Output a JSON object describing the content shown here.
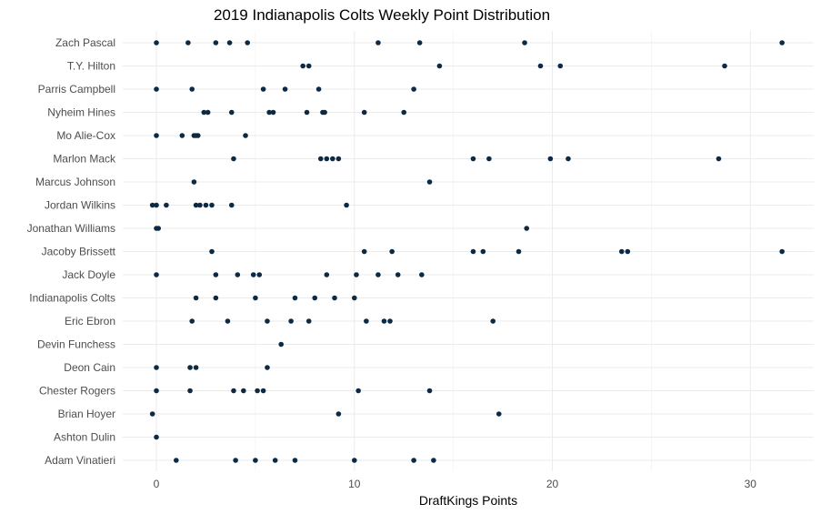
{
  "chart_data": {
    "type": "scatter",
    "title": "2019 Indianapolis Colts Weekly Point Distribution",
    "xlabel": "DraftKings Points",
    "ylabel": "",
    "xlim": [
      -1.7,
      33.2
    ],
    "xticks": [
      0,
      10,
      20,
      30
    ],
    "grid": true,
    "point_color": "#0d2a45",
    "grid_color": "#ebebeb",
    "categories": [
      "Zach Pascal",
      "T.Y. Hilton",
      "Parris Campbell",
      "Nyheim Hines",
      "Mo Alie-Cox",
      "Marlon Mack",
      "Marcus Johnson",
      "Jordan Wilkins",
      "Jonathan Williams",
      "Jacoby Brissett",
      "Jack Doyle",
      "Indianapolis Colts",
      "Eric Ebron",
      "Devin Funchess",
      "Deon Cain",
      "Chester Rogers",
      "Brian Hoyer",
      "Ashton Dulin",
      "Adam Vinatieri"
    ],
    "series": [
      {
        "category": "Zach Pascal",
        "values": [
          0,
          1.6,
          3.0,
          3.7,
          4.6,
          11.2,
          13.3,
          18.6,
          31.6
        ]
      },
      {
        "category": "T.Y. Hilton",
        "values": [
          7.4,
          7.7,
          14.3,
          19.4,
          20.4,
          28.7
        ]
      },
      {
        "category": "Parris Campbell",
        "values": [
          0,
          1.8,
          5.4,
          6.5,
          8.2,
          13.0
        ]
      },
      {
        "category": "Nyheim Hines",
        "values": [
          2.4,
          2.6,
          3.8,
          5.7,
          5.9,
          7.6,
          8.4,
          8.5,
          10.5,
          12.5
        ]
      },
      {
        "category": "Mo Alie-Cox",
        "values": [
          0,
          1.3,
          1.9,
          2.0,
          2.1,
          4.5
        ]
      },
      {
        "category": "Marlon Mack",
        "values": [
          3.9,
          8.3,
          8.6,
          8.9,
          9.2,
          16.0,
          16.8,
          19.9,
          20.8,
          28.4
        ]
      },
      {
        "category": "Marcus Johnson",
        "values": [
          1.9,
          13.8
        ]
      },
      {
        "category": "Jordan Wilkins",
        "values": [
          -0.2,
          0,
          0.5,
          2.0,
          2.2,
          2.5,
          2.8,
          3.8,
          9.6
        ]
      },
      {
        "category": "Jonathan Williams",
        "values": [
          0,
          0.1,
          18.7
        ]
      },
      {
        "category": "Jacoby Brissett",
        "values": [
          2.8,
          10.5,
          11.9,
          16.0,
          16.5,
          18.3,
          23.5,
          23.8,
          31.6
        ]
      },
      {
        "category": "Jack Doyle",
        "values": [
          0,
          3.0,
          4.1,
          4.9,
          5.2,
          8.6,
          10.1,
          11.2,
          12.2,
          13.4
        ]
      },
      {
        "category": "Indianapolis Colts",
        "values": [
          2.0,
          3.0,
          5.0,
          7.0,
          8.0,
          9.0,
          10.0
        ]
      },
      {
        "category": "Eric Ebron",
        "values": [
          1.8,
          3.6,
          5.6,
          6.8,
          7.7,
          10.6,
          11.5,
          11.8,
          17.0
        ]
      },
      {
        "category": "Devin Funchess",
        "values": [
          6.3
        ]
      },
      {
        "category": "Deon Cain",
        "values": [
          0,
          1.7,
          2.0,
          5.6
        ]
      },
      {
        "category": "Chester Rogers",
        "values": [
          0,
          1.7,
          3.9,
          4.4,
          5.1,
          5.4,
          10.2,
          13.8
        ]
      },
      {
        "category": "Brian Hoyer",
        "values": [
          -0.2,
          9.2,
          17.3
        ]
      },
      {
        "category": "Ashton Dulin",
        "values": [
          0
        ]
      },
      {
        "category": "Adam Vinatieri",
        "values": [
          1.0,
          4.0,
          5.0,
          6.0,
          7.0,
          10.0,
          13.0,
          14.0
        ]
      }
    ]
  }
}
